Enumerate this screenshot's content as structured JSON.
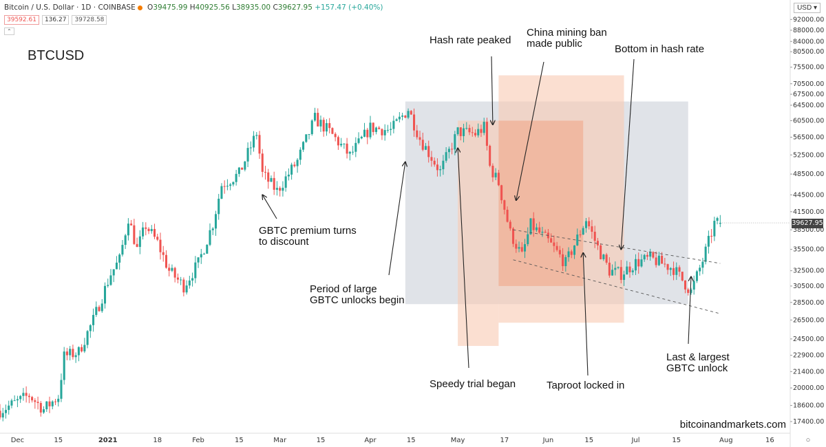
{
  "header": {
    "symbol_line": "Bitcoin / U.S. Dollar · 1D · COINBASE",
    "ohlc": {
      "open_label": "O",
      "open": "39475.99",
      "high_label": "H",
      "high": "40925.56",
      "low_label": "L",
      "low": "38935.00",
      "close_label": "C",
      "close": "39627.95",
      "change": "+157.47 (+0.40%)"
    },
    "sell_price": "39592.61",
    "spread": "136.27",
    "buy_price": "39728.58",
    "collapse_label": "⌃"
  },
  "currency_label": "USD ▾",
  "ticker": "BTCUSD",
  "credit": "bitcoinandmarkets.com",
  "last_price_label": "39627.95",
  "annotations": {
    "gbtc_premium": [
      "GBTC premium turns",
      "to discount"
    ],
    "gbtc_unlocks": [
      "Period of large",
      "GBTC unlocks begin"
    ],
    "hash_peak": [
      "Hash rate peaked"
    ],
    "china_ban": [
      "China mining ban",
      "made public"
    ],
    "hash_bottom": [
      "Bottom in hash rate"
    ],
    "speedy_trial": [
      "Speedy trial began"
    ],
    "taproot": [
      "Taproot locked in"
    ],
    "last_unlock": [
      "Last & largest",
      "GBTC unlock"
    ]
  },
  "chart_data": {
    "type": "candlestick",
    "title": "Bitcoin / U.S. Dollar · 1D · COINBASE",
    "currency": "USD",
    "colors": {
      "up": "#26a69a",
      "down": "#ef5350",
      "grey_zone": "#d5d9e0",
      "orange_light": "#f9c9b3",
      "orange_dark": "#f0a283"
    },
    "x_range": [
      "2020-11-25",
      "2021-08-23"
    ],
    "x_ticks": [
      {
        "label": "Dec",
        "date": "2020-12-01"
      },
      {
        "label": "15",
        "date": "2020-12-15"
      },
      {
        "label": "2021",
        "date": "2021-01-01"
      },
      {
        "label": "18",
        "date": "2021-01-18"
      },
      {
        "label": "Feb",
        "date": "2021-02-01"
      },
      {
        "label": "15",
        "date": "2021-02-15"
      },
      {
        "label": "Mar",
        "date": "2021-03-01"
      },
      {
        "label": "15",
        "date": "2021-03-15"
      },
      {
        "label": "Apr",
        "date": "2021-04-01"
      },
      {
        "label": "15",
        "date": "2021-04-15"
      },
      {
        "label": "May",
        "date": "2021-05-01"
      },
      {
        "label": "17",
        "date": "2021-05-17"
      },
      {
        "label": "Jun",
        "date": "2021-06-01"
      },
      {
        "label": "15",
        "date": "2021-06-15"
      },
      {
        "label": "Jul",
        "date": "2021-07-01"
      },
      {
        "label": "15",
        "date": "2021-07-15"
      },
      {
        "label": "Aug",
        "date": "2021-08-01"
      },
      {
        "label": "16",
        "date": "2021-08-16"
      }
    ],
    "y_ticks": [
      "92000.00",
      "88000.00",
      "84000.00",
      "80500.00",
      "75500.00",
      "70500.00",
      "67500.00",
      "64500.00",
      "60500.00",
      "56500.00",
      "52500.00",
      "48500.00",
      "44500.00",
      "41500.00",
      "38500.00",
      "35500.00",
      "32500.00",
      "30500.00",
      "28500.00",
      "26500.00",
      "24500.00",
      "22900.00",
      "21400.00",
      "20000.00",
      "18600.00",
      "17400.00"
    ],
    "log_scale": true,
    "y_axis_calibration": [
      {
        "price": 64500,
        "at_tick": "64500.00"
      },
      {
        "price": 17400,
        "at_tick": "17400.00"
      }
    ],
    "closing_path": [
      {
        "date": "2020-11-25",
        "close": 18200
      },
      {
        "date": "2020-12-01",
        "close": 18900
      },
      {
        "date": "2020-12-05",
        "close": 19400
      },
      {
        "date": "2020-12-10",
        "close": 18300
      },
      {
        "date": "2020-12-15",
        "close": 19300
      },
      {
        "date": "2020-12-17",
        "close": 22800
      },
      {
        "date": "2020-12-22",
        "close": 23200
      },
      {
        "date": "2020-12-27",
        "close": 26500
      },
      {
        "date": "2021-01-02",
        "close": 32100
      },
      {
        "date": "2021-01-05",
        "close": 34000
      },
      {
        "date": "2021-01-08",
        "close": 40500
      },
      {
        "date": "2021-01-11",
        "close": 35500
      },
      {
        "date": "2021-01-14",
        "close": 39200
      },
      {
        "date": "2021-01-18",
        "close": 36500
      },
      {
        "date": "2021-01-22",
        "close": 32500
      },
      {
        "date": "2021-01-27",
        "close": 30500
      },
      {
        "date": "2021-02-01",
        "close": 33500
      },
      {
        "date": "2021-02-06",
        "close": 39500
      },
      {
        "date": "2021-02-09",
        "close": 46400
      },
      {
        "date": "2021-02-15",
        "close": 48500
      },
      {
        "date": "2021-02-21",
        "close": 57500
      },
      {
        "date": "2021-02-23",
        "close": 48500
      },
      {
        "date": "2021-02-28",
        "close": 45200
      },
      {
        "date": "2021-03-07",
        "close": 51200
      },
      {
        "date": "2021-03-13",
        "close": 61000
      },
      {
        "date": "2021-03-18",
        "close": 57800
      },
      {
        "date": "2021-03-25",
        "close": 52300
      },
      {
        "date": "2021-04-01",
        "close": 58800
      },
      {
        "date": "2021-04-08",
        "close": 58100
      },
      {
        "date": "2021-04-14",
        "close": 63500
      },
      {
        "date": "2021-04-18",
        "close": 56200
      },
      {
        "date": "2021-04-25",
        "close": 49000
      },
      {
        "date": "2021-05-01",
        "close": 57800
      },
      {
        "date": "2021-05-07",
        "close": 57300
      },
      {
        "date": "2021-05-10",
        "close": 58800
      },
      {
        "date": "2021-05-12",
        "close": 50000
      },
      {
        "date": "2021-05-15",
        "close": 46700
      },
      {
        "date": "2021-05-19",
        "close": 38000
      },
      {
        "date": "2021-05-23",
        "close": 34500
      },
      {
        "date": "2021-05-26",
        "close": 39300
      },
      {
        "date": "2021-06-01",
        "close": 36700
      },
      {
        "date": "2021-06-07",
        "close": 33500
      },
      {
        "date": "2021-06-14",
        "close": 40200
      },
      {
        "date": "2021-06-18",
        "close": 35800
      },
      {
        "date": "2021-06-22",
        "close": 32500
      },
      {
        "date": "2021-06-26",
        "close": 32100
      },
      {
        "date": "2021-07-01",
        "close": 33600
      },
      {
        "date": "2021-07-06",
        "close": 34200
      },
      {
        "date": "2021-07-14",
        "close": 32800
      },
      {
        "date": "2021-07-20",
        "close": 29800
      },
      {
        "date": "2021-07-24",
        "close": 33900
      },
      {
        "date": "2021-07-28",
        "close": 39500
      },
      {
        "date": "2021-07-30",
        "close": 39628
      }
    ],
    "last_price": 39627.95,
    "zones": [
      {
        "name": "grey",
        "from": "2021-04-13",
        "to": "2021-07-19",
        "price_high": 65500,
        "price_low": 28300
      },
      {
        "name": "orange_outer",
        "from": "2021-05-15",
        "to": "2021-06-27",
        "price_high": 73000,
        "price_low": 26200
      },
      {
        "name": "orange_left",
        "from": "2021-05-01",
        "to": "2021-05-15",
        "price_high": 60500,
        "price_low": 23800
      },
      {
        "name": "orange_inner",
        "from": "2021-05-15",
        "to": "2021-06-13",
        "price_high": 60500,
        "price_low": 30500
      }
    ],
    "trend_lines": [
      {
        "from": {
          "date": "2021-05-20",
          "price": 38500
        },
        "to": {
          "date": "2021-07-30",
          "price": 33500
        }
      },
      {
        "from": {
          "date": "2021-05-20",
          "price": 34000
        },
        "to": {
          "date": "2021-07-30",
          "price": 27200
        }
      }
    ],
    "events": [
      {
        "key": "gbtc_premium",
        "date": "2021-02-23",
        "price": 44500
      },
      {
        "key": "gbtc_unlocks",
        "date": "2021-04-13",
        "price": 51000
      },
      {
        "key": "hash_peak",
        "date": "2021-05-13",
        "price": 59500
      },
      {
        "key": "china_ban",
        "date": "2021-05-21",
        "price": 43500
      },
      {
        "key": "hash_bottom",
        "date": "2021-06-26",
        "price": 35500
      },
      {
        "key": "speedy_trial",
        "date": "2021-05-01",
        "price": 54000
      },
      {
        "key": "taproot",
        "date": "2021-06-13",
        "price": 35000
      },
      {
        "key": "last_unlock",
        "date": "2021-07-20",
        "price": 31700
      }
    ]
  }
}
